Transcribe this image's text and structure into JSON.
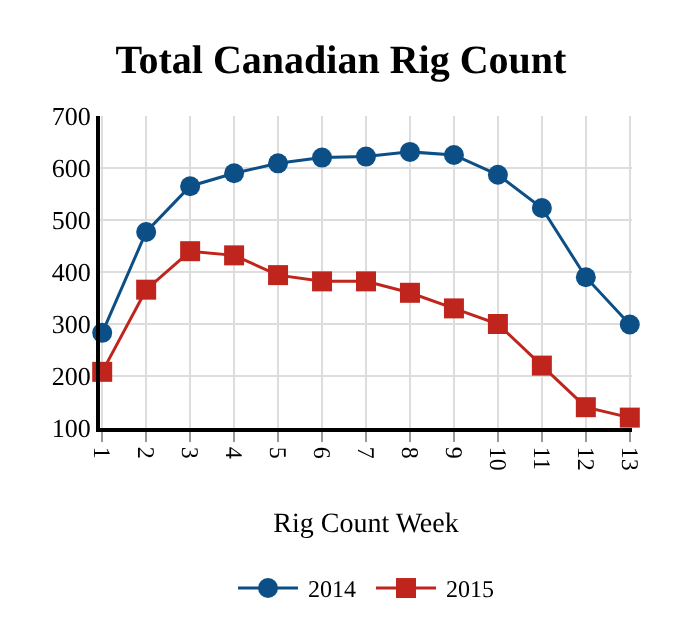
{
  "chart_data": {
    "type": "line",
    "title": "Total Canadian Rig Count",
    "xlabel": "Rig Count Week",
    "categories": [
      "1",
      "2",
      "3",
      "4",
      "5",
      "6",
      "7",
      "8",
      "9",
      "10",
      "11",
      "12",
      "13"
    ],
    "series": [
      {
        "name": "2014",
        "color": "#0c4f86",
        "marker": "circle",
        "values": [
          283,
          477,
          565,
          590,
          609,
          620,
          622,
          631,
          625,
          587,
          523,
          390,
          299
        ]
      },
      {
        "name": "2015",
        "color": "#c0251d",
        "marker": "square",
        "values": [
          208,
          366,
          440,
          432,
          394,
          382,
          382,
          360,
          330,
          300,
          220,
          140,
          120
        ]
      }
    ],
    "ylim": [
      100,
      700
    ],
    "yticks": [
      100,
      200,
      300,
      400,
      500,
      600,
      700
    ],
    "grid": true,
    "legend": "bottom"
  }
}
